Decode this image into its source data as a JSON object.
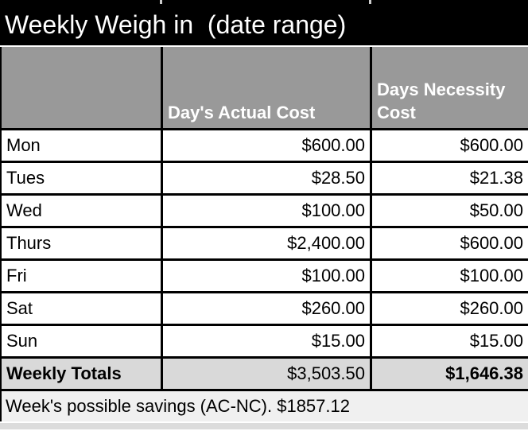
{
  "title": "Weekly Weigh in  (date range)",
  "header": {
    "day_col": "",
    "actual_col": "Day's Actual Cost",
    "necessity_col": "Days Necessity Cost"
  },
  "rows": [
    {
      "day": "Mon",
      "actual": "$600.00",
      "necessity": "$600.00"
    },
    {
      "day": "Tues",
      "actual": "$28.50",
      "necessity": "$21.38"
    },
    {
      "day": "Wed",
      "actual": "$100.00",
      "necessity": "$50.00"
    },
    {
      "day": "Thurs",
      "actual": "$2,400.00",
      "necessity": "$600.00"
    },
    {
      "day": "Fri",
      "actual": "$100.00",
      "necessity": "$100.00"
    },
    {
      "day": "Sat",
      "actual": "$260.00",
      "necessity": "$260.00"
    },
    {
      "day": "Sun",
      "actual": "$15.00",
      "necessity": "$15.00"
    }
  ],
  "totals": {
    "label": "Weekly Totals",
    "actual": "$3,503.50",
    "necessity": "$1,646.38"
  },
  "footer_note": "Week's possible savings (AC-NC). $1857.12",
  "colors": {
    "title_bg": "#000000",
    "title_text": "#ffffff",
    "header_bg": "#999999",
    "header_text": "#ffffff",
    "totals_bg": "#d9d9d9",
    "grid_border": "#000000"
  }
}
